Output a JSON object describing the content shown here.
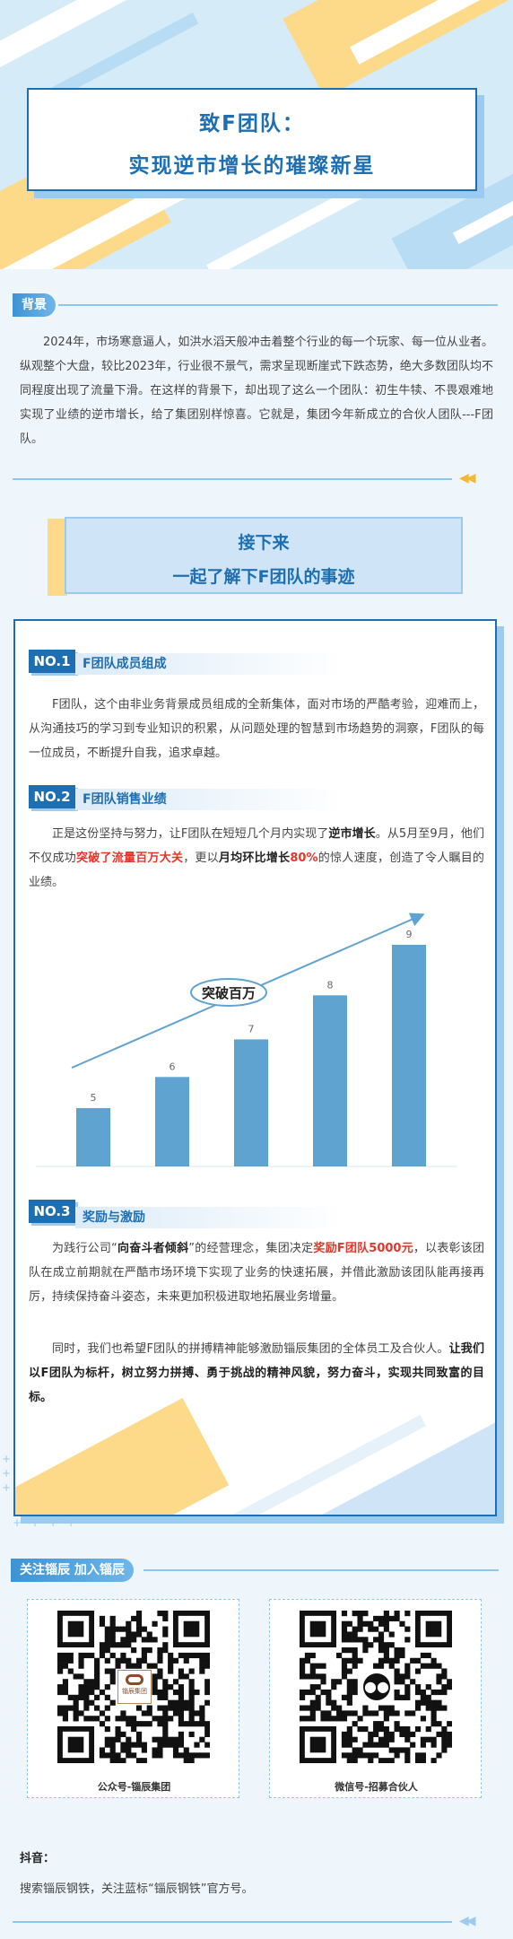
{
  "header": {
    "title_line1": "致F团队：",
    "title_line2": "实现逆市增长的璀璨新星"
  },
  "background_section": {
    "tag": "背景",
    "paragraph": "2024年，市场寒意逼人，如洪水滔天般冲击着整个行业的每一个玩家、每一位从业者。纵观整个大盘，较比2023年，行业很不景气，需求呈现断崖式下跌态势，绝大多数团队均不同程度出现了流量下滑。在这样的背景下，却出现了这么一个团队：初生牛犊、不畏艰难地实现了业绩的逆市增长，给了集团别样惊喜。它就是，集团今年新成立的合伙人团队---F团队。"
  },
  "next_banner": {
    "line1": "接下来",
    "line2": "一起了解下F团队的事迹"
  },
  "section1": {
    "no": "NO.1",
    "title": "F团队成员组成",
    "paragraph": "F团队，这个由非业务背景成员组成的全新集体，面对市场的严酷考验，迎难而上，从沟通技巧的学习到专业知识的积累，从问题处理的智慧到市场趋势的洞察，F团队的每一位成员，不断提升自我，追求卓越。"
  },
  "section2": {
    "no": "NO.2",
    "title": "F团队销售业绩",
    "p_part1": "正是这份坚持与努力，让F团队在短短几个月内实现了",
    "p_bold1": "逆市增长",
    "p_part2": "。从5月至9月，他们不仅成功",
    "p_red1": "突破了流量百万大关",
    "p_part3": "，更以",
    "p_bold2": "月均环比增长",
    "p_red2": "80%",
    "p_part4": "的惊人速度，创造了令人瞩目的业绩。"
  },
  "chart_data": {
    "type": "bar",
    "categories": [
      "",
      "",
      "",
      "",
      ""
    ],
    "values": [
      5,
      6,
      7,
      8,
      9
    ],
    "ylim": [
      0,
      10
    ],
    "annotation": "突破百万",
    "bar_color": "#5fa3d0"
  },
  "section3": {
    "no": "NO.3",
    "title": "奖励与激励",
    "p1_part1": "为践行公司“",
    "p1_bold1": "向奋斗者倾斜",
    "p1_part2": "”的经营理念，集团决定",
    "p1_red1": "奖励F团队5000元",
    "p1_part3": "，以表彰该团队在成立前期就在严酷市场环境下实现了业务的快速拓展，并借此激励该团队能再接再厉，持续保持奋斗姿态，未来更加积极进取地拓展业务增量。",
    "p2_part1": "同时，我们也希望F团队的拼搏精神能够激励锱辰集团的全体员工及合伙人。",
    "p2_bold1": "让我们以F团队为标杆，树立努力拼搏、勇于挑战的精神风貌，努力奋斗，实现共同致富的目标。"
  },
  "follow": {
    "tag": "关注锱辰 加入锱辰",
    "qr1_caption": "公众号-锱辰集团",
    "qr1_logo_text": "锱辰集团",
    "qr2_caption": "微信号-招募合伙人"
  },
  "douyin": {
    "heading": "抖音：",
    "text": "搜索锱辰钢铁，关注蓝标“锱辰钢铁”官方号。"
  },
  "colors": {
    "primary": "#1e6fb1",
    "accent_yellow": "#fdd98a",
    "light_blue": "#9ccbef",
    "red": "#e5352b"
  }
}
